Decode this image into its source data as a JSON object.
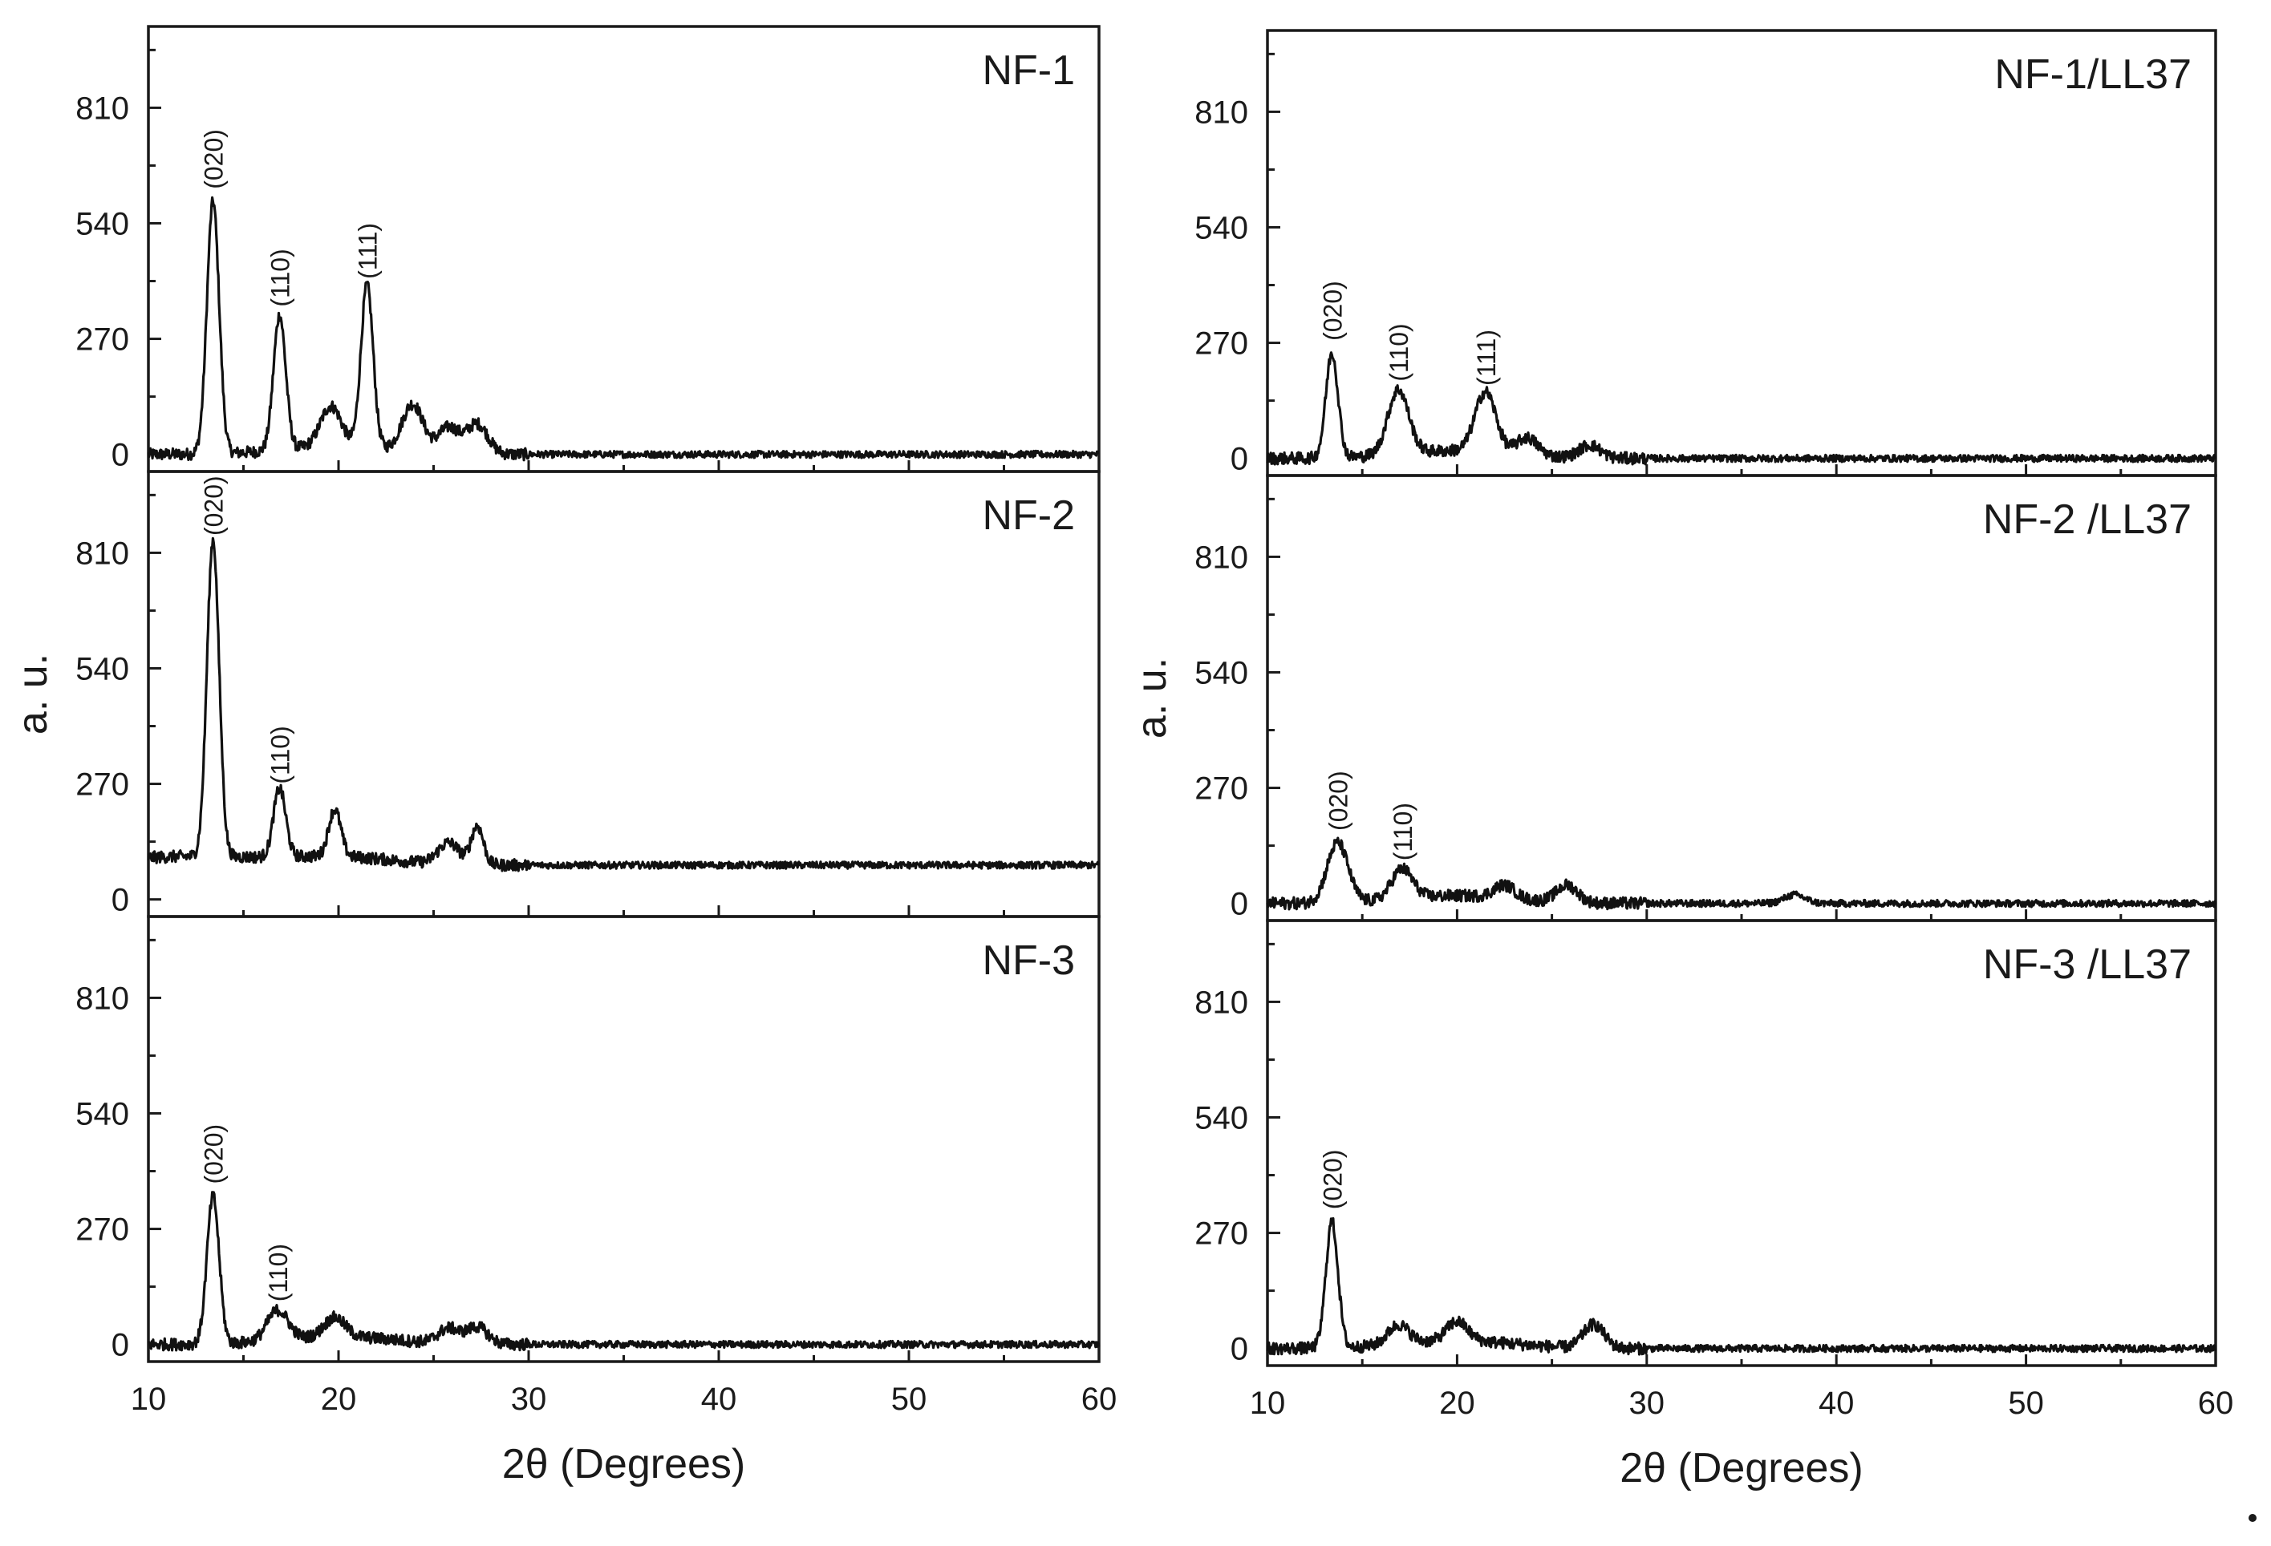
{
  "chart_data": [
    {
      "type": "line",
      "column": "left",
      "xlabel": "2θ  (Degrees)",
      "ylabel": "a. u.",
      "x_ticks": [
        10,
        20,
        30,
        40,
        50,
        60
      ],
      "y_ticks": [
        0,
        270,
        540,
        810
      ],
      "xlim": [
        10,
        60
      ],
      "ylim": [
        -40,
        1000
      ],
      "panels": [
        {
          "label": "NF-1",
          "baseline": 0,
          "peaks": [
            {
              "x": 13.4,
              "y": 590,
              "label": "(020)"
            },
            {
              "x": 16.9,
              "y": 315,
              "label": "(110)"
            },
            {
              "x": 19.6,
              "y": 95,
              "label": ""
            },
            {
              "x": 21.5,
              "y": 380,
              "label": "(111)"
            },
            {
              "x": 23.9,
              "y": 110,
              "label": ""
            },
            {
              "x": 25.8,
              "y": 60,
              "label": ""
            },
            {
              "x": 27.3,
              "y": 70,
              "label": ""
            }
          ]
        },
        {
          "label": "NF-2",
          "baseline": 80,
          "peaks": [
            {
              "x": 13.4,
              "y": 820,
              "label": "(020)"
            },
            {
              "x": 16.9,
              "y": 240,
              "label": "(110)"
            },
            {
              "x": 19.8,
              "y": 190,
              "label": ""
            },
            {
              "x": 25.8,
              "y": 130,
              "label": ""
            },
            {
              "x": 27.3,
              "y": 170,
              "label": ""
            }
          ]
        },
        {
          "label": "NF-3",
          "baseline": 0,
          "peaks": [
            {
              "x": 13.4,
              "y": 345,
              "label": "(020)"
            },
            {
              "x": 16.8,
              "y": 70,
              "label": "(110)"
            },
            {
              "x": 19.8,
              "y": 45,
              "label": ""
            },
            {
              "x": 25.8,
              "y": 35,
              "label": ""
            },
            {
              "x": 27.3,
              "y": 40,
              "label": ""
            }
          ]
        }
      ]
    },
    {
      "type": "line",
      "column": "right",
      "xlabel": "2θ  (Degrees)",
      "ylabel": "a. u.",
      "x_ticks": [
        10,
        20,
        30,
        40,
        50,
        60
      ],
      "y_ticks": [
        0,
        270,
        540,
        810
      ],
      "xlim": [
        10,
        60
      ],
      "ylim": [
        -40,
        1000
      ],
      "panels": [
        {
          "label": "NF-1/LL37",
          "baseline": 0,
          "peaks": [
            {
              "x": 13.4,
              "y": 245,
              "label": "(020)"
            },
            {
              "x": 16.9,
              "y": 150,
              "label": "(110)"
            },
            {
              "x": 21.5,
              "y": 140,
              "label": "(111)"
            },
            {
              "x": 23.7,
              "y": 40,
              "label": ""
            },
            {
              "x": 27.0,
              "y": 30,
              "label": ""
            }
          ]
        },
        {
          "label": "NF-2 /LL37",
          "baseline": 0,
          "peaks": [
            {
              "x": 13.7,
              "y": 140,
              "label": "(020)"
            },
            {
              "x": 17.1,
              "y": 70,
              "label": "(110)"
            },
            {
              "x": 22.5,
              "y": 30,
              "label": ""
            },
            {
              "x": 25.8,
              "y": 40,
              "label": ""
            },
            {
              "x": 37.8,
              "y": 20,
              "label": ""
            }
          ]
        },
        {
          "label": "NF-3 /LL37",
          "baseline": 0,
          "peaks": [
            {
              "x": 13.4,
              "y": 295,
              "label": "(020)"
            },
            {
              "x": 16.9,
              "y": 45,
              "label": ""
            },
            {
              "x": 20.0,
              "y": 45,
              "label": ""
            },
            {
              "x": 27.2,
              "y": 55,
              "label": ""
            }
          ]
        }
      ]
    }
  ]
}
